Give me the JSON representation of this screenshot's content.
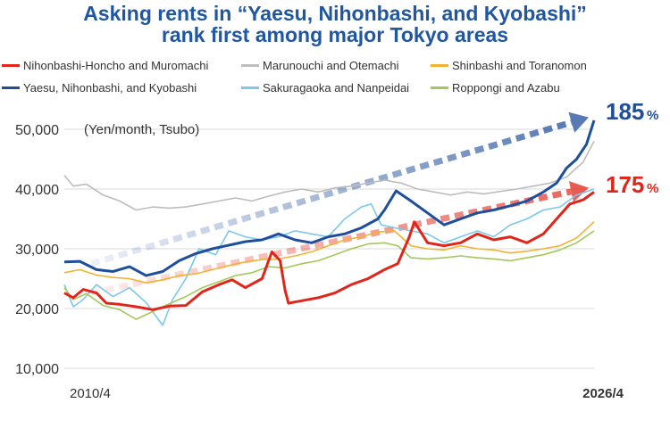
{
  "chart_data": {
    "type": "line",
    "title": "Asking rents in “Yaesu, Nihonbashi, and Kyobashi” rank first among major Tokyo areas",
    "title_lines": [
      "Asking rents in “Yaesu, Nihonbashi, and Kyobashi”",
      "rank first among major Tokyo areas"
    ],
    "ylabel": "(Yen/month, Tsubo)",
    "ylim": [
      10000,
      50000
    ],
    "yticks": [
      10000,
      20000,
      30000,
      40000,
      50000
    ],
    "ytick_labels": [
      "10,000",
      "20,000",
      "30,000",
      "40,000",
      "50,000"
    ],
    "x_start": "2010/4",
    "x_end": "2026/4",
    "x_tick_labels": [
      "2010/4",
      "2026/4"
    ],
    "grid": "horizontal",
    "legend_position": "top",
    "series": [
      {
        "name": "Nihonbashi-Honcho and Muromachi",
        "color": "#e1251b",
        "points": [
          [
            2010.33,
            22600
          ],
          [
            2010.6,
            21800
          ],
          [
            2010.9,
            23200
          ],
          [
            2011.3,
            22600
          ],
          [
            2011.6,
            20900
          ],
          [
            2012.0,
            20700
          ],
          [
            2012.5,
            20300
          ],
          [
            2013.0,
            19800
          ],
          [
            2013.5,
            20400
          ],
          [
            2014.0,
            20500
          ],
          [
            2014.5,
            22800
          ],
          [
            2015.0,
            24000
          ],
          [
            2015.4,
            24800
          ],
          [
            2015.8,
            23500
          ],
          [
            2016.3,
            25000
          ],
          [
            2016.6,
            29500
          ],
          [
            2016.85,
            28000
          ],
          [
            2017.0,
            23000
          ],
          [
            2017.1,
            20900
          ],
          [
            2017.5,
            21300
          ],
          [
            2018.0,
            21800
          ],
          [
            2018.5,
            22600
          ],
          [
            2019.0,
            24000
          ],
          [
            2019.5,
            25000
          ],
          [
            2020.0,
            26500
          ],
          [
            2020.4,
            27500
          ],
          [
            2020.75,
            32000
          ],
          [
            2020.9,
            34500
          ],
          [
            2021.3,
            31000
          ],
          [
            2021.8,
            30500
          ],
          [
            2022.3,
            31000
          ],
          [
            2022.8,
            32500
          ],
          [
            2023.3,
            31500
          ],
          [
            2023.8,
            32000
          ],
          [
            2024.3,
            31000
          ],
          [
            2024.8,
            32500
          ],
          [
            2025.2,
            35000
          ],
          [
            2025.6,
            37500
          ],
          [
            2026.0,
            38200
          ],
          [
            2026.33,
            39500
          ]
        ]
      },
      {
        "name": "Marunouchi and Otemachi",
        "color": "#bdbdbd",
        "points": [
          [
            2010.33,
            42300
          ],
          [
            2010.6,
            40500
          ],
          [
            2011.0,
            40800
          ],
          [
            2011.5,
            39000
          ],
          [
            2012.0,
            38000
          ],
          [
            2012.5,
            36500
          ],
          [
            2013.0,
            37000
          ],
          [
            2013.5,
            36800
          ],
          [
            2014.0,
            37000
          ],
          [
            2014.5,
            37500
          ],
          [
            2015.0,
            38000
          ],
          [
            2015.5,
            38500
          ],
          [
            2016.0,
            38000
          ],
          [
            2016.5,
            38800
          ],
          [
            2017.0,
            39500
          ],
          [
            2017.5,
            40000
          ],
          [
            2018.0,
            39500
          ],
          [
            2018.5,
            40200
          ],
          [
            2019.0,
            40500
          ],
          [
            2019.5,
            41000
          ],
          [
            2020.0,
            41500
          ],
          [
            2020.5,
            41000
          ],
          [
            2021.0,
            40000
          ],
          [
            2021.5,
            39500
          ],
          [
            2022.0,
            39000
          ],
          [
            2022.5,
            39500
          ],
          [
            2023.0,
            39200
          ],
          [
            2023.5,
            39600
          ],
          [
            2024.0,
            40000
          ],
          [
            2024.5,
            40500
          ],
          [
            2025.0,
            41000
          ],
          [
            2025.5,
            42000
          ],
          [
            2026.0,
            44500
          ],
          [
            2026.33,
            48000
          ]
        ]
      },
      {
        "name": "Shinbashi and Toranomon",
        "color": "#f2b233",
        "points": [
          [
            2010.33,
            26000
          ],
          [
            2010.8,
            26500
          ],
          [
            2011.3,
            25600
          ],
          [
            2011.8,
            25200
          ],
          [
            2012.3,
            25000
          ],
          [
            2012.8,
            24300
          ],
          [
            2013.3,
            24800
          ],
          [
            2013.8,
            25500
          ],
          [
            2014.3,
            25800
          ],
          [
            2014.8,
            26500
          ],
          [
            2015.3,
            27200
          ],
          [
            2015.8,
            27800
          ],
          [
            2016.3,
            28200
          ],
          [
            2016.8,
            28300
          ],
          [
            2017.3,
            28800
          ],
          [
            2017.8,
            29500
          ],
          [
            2018.3,
            30500
          ],
          [
            2018.8,
            31500
          ],
          [
            2019.3,
            32000
          ],
          [
            2019.8,
            32800
          ],
          [
            2020.3,
            33000
          ],
          [
            2020.8,
            30500
          ],
          [
            2021.3,
            30000
          ],
          [
            2021.8,
            29800
          ],
          [
            2022.3,
            30500
          ],
          [
            2022.8,
            30000
          ],
          [
            2023.3,
            29800
          ],
          [
            2023.8,
            29300
          ],
          [
            2024.3,
            29600
          ],
          [
            2024.8,
            30000
          ],
          [
            2025.3,
            30500
          ],
          [
            2025.8,
            31800
          ],
          [
            2026.33,
            34500
          ]
        ]
      },
      {
        "name": "Yaesu, Nihonbashi, and Kyobashi",
        "color": "#1f4e9b",
        "points": [
          [
            2010.33,
            27800
          ],
          [
            2010.8,
            27900
          ],
          [
            2011.3,
            26500
          ],
          [
            2011.8,
            26200
          ],
          [
            2012.3,
            27000
          ],
          [
            2012.8,
            25500
          ],
          [
            2013.3,
            26200
          ],
          [
            2013.8,
            28000
          ],
          [
            2014.3,
            29200
          ],
          [
            2014.8,
            30000
          ],
          [
            2015.3,
            30600
          ],
          [
            2015.8,
            31200
          ],
          [
            2016.3,
            31500
          ],
          [
            2016.8,
            32500
          ],
          [
            2017.3,
            31500
          ],
          [
            2017.8,
            31000
          ],
          [
            2018.3,
            32000
          ],
          [
            2018.8,
            32500
          ],
          [
            2019.3,
            33500
          ],
          [
            2019.8,
            35000
          ],
          [
            2020.0,
            36500
          ],
          [
            2020.35,
            39700
          ],
          [
            2020.8,
            38000
          ],
          [
            2021.3,
            36000
          ],
          [
            2021.8,
            34000
          ],
          [
            2022.3,
            35000
          ],
          [
            2022.8,
            36000
          ],
          [
            2023.3,
            36500
          ],
          [
            2023.8,
            37200
          ],
          [
            2024.3,
            38000
          ],
          [
            2024.8,
            39500
          ],
          [
            2025.2,
            41000
          ],
          [
            2025.5,
            43500
          ],
          [
            2025.8,
            45000
          ],
          [
            2026.1,
            47500
          ],
          [
            2026.33,
            51500
          ]
        ]
      },
      {
        "name": "Sakuragaoka and Nanpeidai",
        "color": "#7cc8ea",
        "points": [
          [
            2010.33,
            24000
          ],
          [
            2010.6,
            20300
          ],
          [
            2010.9,
            21500
          ],
          [
            2011.3,
            24000
          ],
          [
            2011.8,
            22000
          ],
          [
            2012.3,
            23500
          ],
          [
            2012.8,
            21000
          ],
          [
            2013.3,
            17200
          ],
          [
            2013.6,
            21500
          ],
          [
            2014.0,
            25000
          ],
          [
            2014.4,
            30000
          ],
          [
            2014.9,
            29000
          ],
          [
            2015.3,
            33000
          ],
          [
            2015.8,
            32000
          ],
          [
            2016.3,
            31500
          ],
          [
            2016.8,
            32000
          ],
          [
            2017.3,
            33000
          ],
          [
            2017.8,
            32500
          ],
          [
            2018.3,
            32000
          ],
          [
            2018.8,
            35000
          ],
          [
            2019.3,
            37000
          ],
          [
            2019.6,
            37500
          ],
          [
            2019.9,
            34000
          ],
          [
            2020.3,
            33500
          ],
          [
            2020.8,
            33000
          ],
          [
            2021.3,
            32500
          ],
          [
            2021.8,
            31000
          ],
          [
            2022.3,
            32000
          ],
          [
            2022.8,
            33000
          ],
          [
            2023.3,
            32000
          ],
          [
            2023.8,
            34000
          ],
          [
            2024.3,
            35000
          ],
          [
            2024.8,
            36500
          ],
          [
            2025.3,
            37000
          ],
          [
            2025.8,
            39000
          ],
          [
            2026.33,
            40000
          ]
        ]
      },
      {
        "name": "Roppongi and Azabu",
        "color": "#a3c85a",
        "points": [
          [
            2010.33,
            23500
          ],
          [
            2010.6,
            21500
          ],
          [
            2011.0,
            22500
          ],
          [
            2011.5,
            20500
          ],
          [
            2012.0,
            19800
          ],
          [
            2012.5,
            18200
          ],
          [
            2013.0,
            19500
          ],
          [
            2013.5,
            20800
          ],
          [
            2014.0,
            22000
          ],
          [
            2014.5,
            23500
          ],
          [
            2015.0,
            24500
          ],
          [
            2015.5,
            25500
          ],
          [
            2016.0,
            26000
          ],
          [
            2016.5,
            27000
          ],
          [
            2017.0,
            26800
          ],
          [
            2017.5,
            27500
          ],
          [
            2018.0,
            28000
          ],
          [
            2018.5,
            29000
          ],
          [
            2019.0,
            30000
          ],
          [
            2019.5,
            30800
          ],
          [
            2020.0,
            31000
          ],
          [
            2020.4,
            30500
          ],
          [
            2020.8,
            28500
          ],
          [
            2021.3,
            28300
          ],
          [
            2021.8,
            28500
          ],
          [
            2022.3,
            28800
          ],
          [
            2022.8,
            28500
          ],
          [
            2023.3,
            28300
          ],
          [
            2023.8,
            28000
          ],
          [
            2024.3,
            28500
          ],
          [
            2024.8,
            29000
          ],
          [
            2025.3,
            29800
          ],
          [
            2025.8,
            31000
          ],
          [
            2026.33,
            33000
          ]
        ]
      }
    ],
    "trend_arrows": [
      {
        "label": "185",
        "unit": "%",
        "color": "#1f4e9b",
        "from": [
          2010.33,
          27500
        ],
        "to": [
          2026.33,
          52000
        ]
      },
      {
        "label": "175",
        "unit": "%",
        "color": "#e1251b",
        "from": [
          2010.33,
          22600
        ],
        "to": [
          2026.33,
          40200
        ]
      }
    ]
  }
}
